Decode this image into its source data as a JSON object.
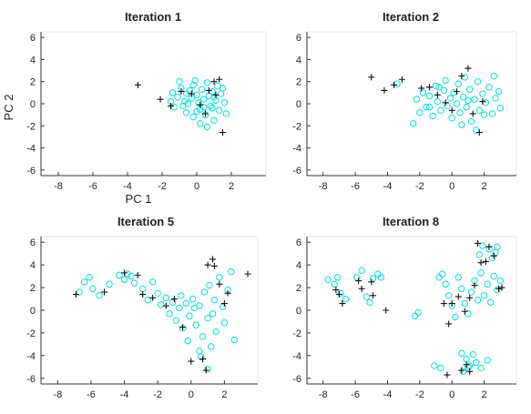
{
  "figure": {
    "colors": {
      "cyan_marker": "#00e0e6",
      "plus_marker": "#111111",
      "axis": "#333333"
    }
  },
  "chart_data": [
    {
      "type": "scatter",
      "title": "Iteration 1",
      "xlabel": "PC 1",
      "ylabel": "PC 2",
      "xlim": [
        -9,
        4
      ],
      "ylim": [
        -6.5,
        6.5
      ],
      "xticks": [
        -8,
        -6,
        -4,
        -2,
        0,
        2
      ],
      "yticks": [
        -6,
        -4,
        -2,
        0,
        2,
        4,
        6
      ],
      "grid": false,
      "series": [
        {
          "marker": "circle",
          "color": "#00e0e6",
          "points": [
            [
              -1.4,
              1.0
            ],
            [
              -1.1,
              0.6
            ],
            [
              -0.9,
              1.4
            ],
            [
              -0.7,
              0.2
            ],
            [
              -0.6,
              -0.8
            ],
            [
              -0.4,
              1.2
            ],
            [
              -0.3,
              0.5
            ],
            [
              -0.2,
              -1.2
            ],
            [
              -0.1,
              2.1
            ],
            [
              0.0,
              0.8
            ],
            [
              0.1,
              0.1
            ],
            [
              0.2,
              -0.5
            ],
            [
              0.3,
              1.3
            ],
            [
              0.4,
              0.4
            ],
            [
              0.5,
              -1.0
            ],
            [
              0.6,
              1.9
            ],
            [
              0.7,
              0.7
            ],
            [
              0.8,
              -0.2
            ],
            [
              0.9,
              1.1
            ],
            [
              1.0,
              -1.5
            ],
            [
              1.1,
              0.3
            ],
            [
              1.2,
              1.6
            ],
            [
              1.3,
              -0.6
            ],
            [
              1.4,
              0.9
            ],
            [
              1.6,
              0.1
            ],
            [
              1.7,
              -0.9
            ],
            [
              -1.3,
              -0.3
            ],
            [
              -0.8,
              -0.2
            ],
            [
              -0.5,
              0.0
            ],
            [
              0.2,
              -1.8
            ],
            [
              0.6,
              -2.1
            ],
            [
              1.0,
              0.6
            ],
            [
              -1.0,
              2.0
            ],
            [
              -0.2,
              1.7
            ],
            [
              0.4,
              -0.3
            ],
            [
              0.9,
              -0.4
            ],
            [
              -0.6,
              0.9
            ],
            [
              1.5,
              1.4
            ],
            [
              -1.5,
              0.2
            ],
            [
              0.0,
              -0.7
            ]
          ]
        },
        {
          "marker": "plus",
          "color": "#111111",
          "points": [
            [
              -3.4,
              1.7
            ],
            [
              -2.1,
              0.4
            ],
            [
              -1.5,
              -0.2
            ],
            [
              -0.3,
              0.9
            ],
            [
              0.2,
              -0.1
            ],
            [
              0.5,
              -0.9
            ],
            [
              0.7,
              1.2
            ],
            [
              1.0,
              2.0
            ],
            [
              1.3,
              2.2
            ],
            [
              1.5,
              -2.6
            ],
            [
              1.1,
              0.8
            ],
            [
              -0.9,
              1.1
            ]
          ]
        }
      ]
    },
    {
      "type": "scatter",
      "title": "Iteration 2",
      "xlim": [
        -9,
        4
      ],
      "ylim": [
        -6.5,
        6.5
      ],
      "xticks": [
        -8,
        -6,
        -4,
        -2,
        0,
        2
      ],
      "yticks": [
        -6,
        -4,
        -2,
        0,
        2,
        4,
        6
      ],
      "grid": false,
      "series": [
        {
          "marker": "circle",
          "color": "#00e0e6",
          "points": [
            [
              -3.4,
              1.8
            ],
            [
              -2.4,
              -1.8
            ],
            [
              -2.2,
              0.4
            ],
            [
              -2.0,
              -0.8
            ],
            [
              -1.8,
              1.0
            ],
            [
              -1.6,
              -0.3
            ],
            [
              -1.4,
              0.7
            ],
            [
              -1.2,
              -1.1
            ],
            [
              -1.0,
              1.6
            ],
            [
              -0.9,
              0.2
            ],
            [
              -0.7,
              -0.6
            ],
            [
              -0.5,
              1.2
            ],
            [
              -0.4,
              2.1
            ],
            [
              -0.3,
              -0.2
            ],
            [
              -0.1,
              0.5
            ],
            [
              0.0,
              -1.3
            ],
            [
              0.1,
              1.0
            ],
            [
              0.3,
              0.0
            ],
            [
              0.4,
              1.8
            ],
            [
              0.5,
              -0.8
            ],
            [
              0.7,
              0.6
            ],
            [
              0.8,
              2.4
            ],
            [
              0.9,
              -0.3
            ],
            [
              1.1,
              1.3
            ],
            [
              1.2,
              -1.6
            ],
            [
              1.4,
              0.4
            ],
            [
              1.6,
              2.0
            ],
            [
              1.7,
              -0.6
            ],
            [
              1.9,
              0.9
            ],
            [
              2.1,
              0.1
            ],
            [
              2.3,
              1.5
            ],
            [
              2.5,
              -0.9
            ],
            [
              2.7,
              0.5
            ],
            [
              2.9,
              1.1
            ],
            [
              3.0,
              -0.4
            ],
            [
              2.6,
              2.5
            ],
            [
              1.5,
              -2.4
            ],
            [
              0.6,
              -1.9
            ],
            [
              -0.8,
              1.5
            ],
            [
              1.0,
              0.3
            ],
            [
              -1.4,
              -0.3
            ],
            [
              2.0,
              -1.0
            ]
          ]
        },
        {
          "marker": "plus",
          "color": "#111111",
          "points": [
            [
              -5.0,
              2.4
            ],
            [
              -4.2,
              1.2
            ],
            [
              -3.6,
              1.7
            ],
            [
              -3.1,
              2.2
            ],
            [
              -1.9,
              1.4
            ],
            [
              -1.4,
              1.5
            ],
            [
              -0.9,
              0.8
            ],
            [
              -0.4,
              0.1
            ],
            [
              0.0,
              -0.6
            ],
            [
              0.3,
              1.1
            ],
            [
              0.6,
              2.5
            ],
            [
              1.0,
              3.2
            ],
            [
              1.3,
              -0.9
            ],
            [
              1.7,
              -2.6
            ],
            [
              1.9,
              0.2
            ]
          ]
        }
      ]
    },
    {
      "type": "scatter",
      "title": "Iteration 5",
      "xlim": [
        -9,
        4
      ],
      "ylim": [
        -6.5,
        6.5
      ],
      "xticks": [
        -8,
        -6,
        -4,
        -2,
        0,
        2
      ],
      "yticks": [
        -6,
        -4,
        -2,
        0,
        2,
        4,
        6
      ],
      "grid": false,
      "series": [
        {
          "marker": "circle",
          "color": "#00e0e6",
          "points": [
            [
              -6.7,
              1.6
            ],
            [
              -6.4,
              2.5
            ],
            [
              -6.1,
              2.9
            ],
            [
              -5.9,
              1.9
            ],
            [
              -5.5,
              1.3
            ],
            [
              -4.9,
              2.3
            ],
            [
              -4.3,
              3.1
            ],
            [
              -4.0,
              2.7
            ],
            [
              -3.8,
              3.2
            ],
            [
              -3.6,
              3.0
            ],
            [
              -3.4,
              2.4
            ],
            [
              -2.9,
              1.9
            ],
            [
              -2.6,
              0.9
            ],
            [
              -2.3,
              2.5
            ],
            [
              -2.0,
              1.5
            ],
            [
              -1.8,
              0.5
            ],
            [
              -1.5,
              1.1
            ],
            [
              -1.3,
              -0.3
            ],
            [
              -1.1,
              0.7
            ],
            [
              -0.9,
              -0.9
            ],
            [
              -0.7,
              0.2
            ],
            [
              -0.5,
              -1.6
            ],
            [
              -0.3,
              0.6
            ],
            [
              -0.1,
              -0.5
            ],
            [
              0.1,
              1.0
            ],
            [
              0.3,
              -1.3
            ],
            [
              0.5,
              0.4
            ],
            [
              0.7,
              -2.3
            ],
            [
              0.8,
              1.6
            ],
            [
              1.0,
              -0.7
            ],
            [
              1.1,
              2.2
            ],
            [
              1.2,
              -3.2
            ],
            [
              1.4,
              0.9
            ],
            [
              1.5,
              -1.9
            ],
            [
              1.7,
              2.9
            ],
            [
              1.9,
              0.3
            ],
            [
              2.0,
              -1.1
            ],
            [
              2.2,
              1.8
            ],
            [
              2.4,
              3.4
            ],
            [
              2.6,
              -2.6
            ],
            [
              0.6,
              -4.1
            ],
            [
              1.0,
              -5.2
            ],
            [
              0.5,
              -3.6
            ],
            [
              -0.2,
              -2.7
            ],
            [
              1.3,
              -0.3
            ],
            [
              0.2,
              0.2
            ],
            [
              -0.6,
              1.3
            ]
          ]
        },
        {
          "marker": "plus",
          "color": "#111111",
          "points": [
            [
              -6.9,
              1.4
            ],
            [
              -5.2,
              1.6
            ],
            [
              -4.0,
              3.3
            ],
            [
              -3.2,
              3.1
            ],
            [
              -2.9,
              1.4
            ],
            [
              -2.3,
              1.1
            ],
            [
              -1.5,
              0.4
            ],
            [
              -1.0,
              1.0
            ],
            [
              -0.5,
              -1.5
            ],
            [
              0.0,
              -4.5
            ],
            [
              0.7,
              -4.3
            ],
            [
              0.9,
              -5.3
            ],
            [
              1.0,
              4.0
            ],
            [
              1.3,
              4.5
            ],
            [
              1.4,
              3.9
            ],
            [
              1.7,
              2.3
            ],
            [
              2.2,
              1.5
            ],
            [
              2.0,
              0.6
            ],
            [
              3.4,
              3.2
            ]
          ]
        }
      ]
    },
    {
      "type": "scatter",
      "title": "Iteration 8",
      "xlim": [
        -9,
        4
      ],
      "ylim": [
        -6.5,
        6.5
      ],
      "xticks": [
        -8,
        -6,
        -4,
        -2,
        0,
        2
      ],
      "yticks": [
        -6,
        -4,
        -2,
        0,
        2,
        4,
        6
      ],
      "grid": false,
      "series": [
        {
          "marker": "circle",
          "color": "#00e0e6",
          "points": [
            [
              -7.7,
              2.7
            ],
            [
              -7.3,
              2.3
            ],
            [
              -7.1,
              2.9
            ],
            [
              -6.9,
              1.5
            ],
            [
              -6.6,
              1.0
            ],
            [
              -5.9,
              2.9
            ],
            [
              -5.6,
              3.5
            ],
            [
              -5.3,
              1.2
            ],
            [
              -5.1,
              0.7
            ],
            [
              -4.9,
              2.8
            ],
            [
              -4.6,
              3.2
            ],
            [
              -4.4,
              2.9
            ],
            [
              -2.3,
              -0.5
            ],
            [
              -2.1,
              -0.2
            ],
            [
              -0.8,
              2.9
            ],
            [
              -0.6,
              3.2
            ],
            [
              -0.4,
              2.3
            ],
            [
              -0.2,
              1.3
            ],
            [
              0.0,
              0.4
            ],
            [
              0.2,
              -0.6
            ],
            [
              0.4,
              2.9
            ],
            [
              0.6,
              1.9
            ],
            [
              0.8,
              0.6
            ],
            [
              1.0,
              -0.3
            ],
            [
              1.2,
              1.6
            ],
            [
              1.4,
              2.6
            ],
            [
              1.6,
              0.9
            ],
            [
              1.8,
              3.3
            ],
            [
              2.0,
              1.3
            ],
            [
              2.2,
              2.3
            ],
            [
              2.4,
              0.7
            ],
            [
              2.6,
              3.0
            ],
            [
              2.8,
              1.8
            ],
            [
              3.0,
              2.6
            ],
            [
              2.7,
              5.1
            ],
            [
              2.5,
              4.6
            ],
            [
              2.3,
              5.4
            ],
            [
              2.8,
              5.6
            ],
            [
              1.7,
              4.9
            ],
            [
              1.9,
              5.7
            ],
            [
              -1.1,
              -4.9
            ],
            [
              -0.7,
              -5.1
            ],
            [
              0.6,
              -3.8
            ],
            [
              0.9,
              -4.3
            ],
            [
              1.1,
              -4.9
            ],
            [
              1.3,
              -3.9
            ],
            [
              1.5,
              -4.6
            ],
            [
              1.8,
              -5.1
            ],
            [
              2.2,
              -4.4
            ],
            [
              0.7,
              -5.4
            ],
            [
              1.0,
              -5.0
            ]
          ]
        },
        {
          "marker": "plus",
          "color": "#111111",
          "points": [
            [
              -7.2,
              1.8
            ],
            [
              -7.0,
              1.4
            ],
            [
              -6.8,
              0.6
            ],
            [
              -5.8,
              2.6
            ],
            [
              -5.6,
              1.9
            ],
            [
              -5.0,
              2.5
            ],
            [
              -4.9,
              1.3
            ],
            [
              -4.1,
              0.0
            ],
            [
              -0.5,
              0.6
            ],
            [
              -0.2,
              -1.2
            ],
            [
              0.0,
              0.6
            ],
            [
              0.4,
              1.2
            ],
            [
              0.8,
              -0.1
            ],
            [
              1.1,
              1.1
            ],
            [
              1.4,
              2.2
            ],
            [
              1.6,
              5.9
            ],
            [
              1.8,
              4.2
            ],
            [
              2.1,
              4.3
            ],
            [
              2.3,
              5.6
            ],
            [
              2.6,
              4.8
            ],
            [
              2.9,
              1.9
            ],
            [
              3.1,
              2.0
            ],
            [
              0.9,
              -4.8
            ],
            [
              0.6,
              -5.3
            ],
            [
              -0.3,
              -5.7
            ],
            [
              1.1,
              -5.4
            ]
          ]
        }
      ]
    }
  ]
}
